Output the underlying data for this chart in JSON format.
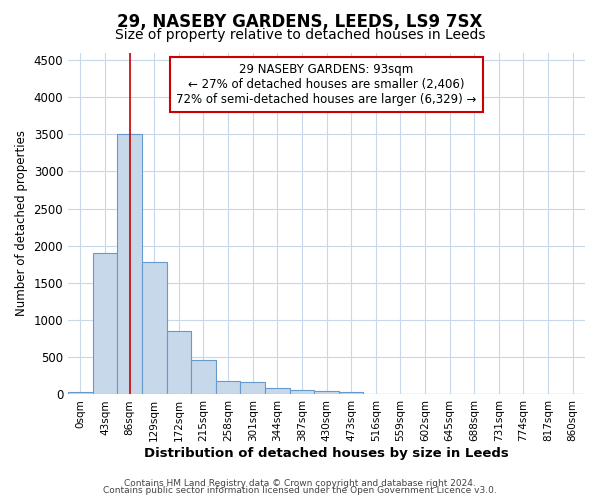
{
  "title1": "29, NASEBY GARDENS, LEEDS, LS9 7SX",
  "title2": "Size of property relative to detached houses in Leeds",
  "xlabel": "Distribution of detached houses by size in Leeds",
  "ylabel": "Number of detached properties",
  "bar_color": "#c8d8eb",
  "bar_edge_color": "#6699cc",
  "bin_labels": [
    "0sqm",
    "43sqm",
    "86sqm",
    "129sqm",
    "172sqm",
    "215sqm",
    "258sqm",
    "301sqm",
    "344sqm",
    "387sqm",
    "430sqm",
    "473sqm",
    "516sqm",
    "559sqm",
    "602sqm",
    "645sqm",
    "688sqm",
    "731sqm",
    "774sqm",
    "817sqm",
    "860sqm"
  ],
  "bar_heights": [
    30,
    1900,
    3500,
    1780,
    860,
    460,
    175,
    165,
    90,
    60,
    40,
    35,
    0,
    0,
    0,
    0,
    0,
    0,
    0,
    0,
    0
  ],
  "ylim": [
    0,
    4600
  ],
  "yticks": [
    0,
    500,
    1000,
    1500,
    2000,
    2500,
    3000,
    3500,
    4000,
    4500
  ],
  "vline_x": 2.0,
  "vline_color": "#cc0000",
  "annotation_text": "29 NASEBY GARDENS: 93sqm\n← 27% of detached houses are smaller (2,406)\n72% of semi-detached houses are larger (6,329) →",
  "annotation_box_color": "#ffffff",
  "annotation_box_edge": "#cc0000",
  "footer1": "Contains HM Land Registry data © Crown copyright and database right 2024.",
  "footer2": "Contains public sector information licensed under the Open Government Licence v3.0.",
  "bg_color": "#ffffff",
  "grid_color": "#c8d8eb",
  "title1_fontsize": 12,
  "title2_fontsize": 10
}
